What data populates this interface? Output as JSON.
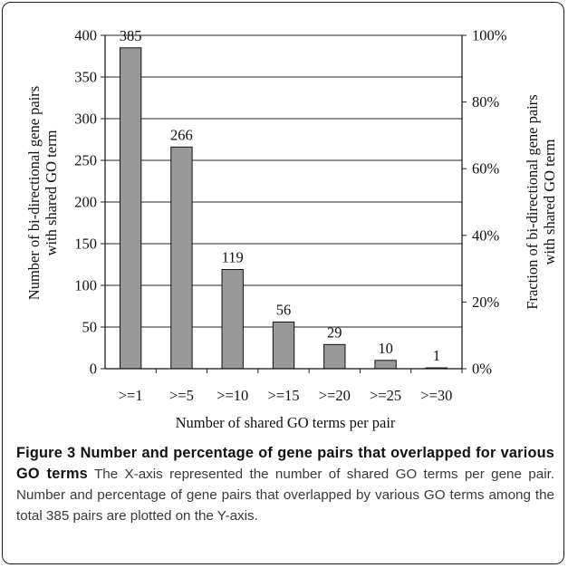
{
  "chart_data": {
    "type": "bar",
    "categories": [
      ">=1",
      ">=5",
      ">=10",
      ">=15",
      ">=20",
      ">=25",
      ">=30"
    ],
    "values": [
      385,
      266,
      119,
      56,
      29,
      10,
      1
    ],
    "data_labels": [
      "385",
      "266",
      "119",
      "56",
      "29",
      "10",
      "1"
    ],
    "xlabel": "Number of shared GO terms per pair",
    "ylabel": [
      "Number of bi-directional gene pairs",
      "with shared GO term"
    ],
    "ylabel_right": [
      "Fraction of bi-directional gene pairs",
      "with shared GO term"
    ],
    "ylim": [
      0,
      400
    ],
    "yticks": [
      0,
      50,
      100,
      150,
      200,
      250,
      300,
      350,
      400
    ],
    "ylim_right": [
      0,
      1.0
    ],
    "yticks_right": [
      "0%",
      "20%",
      "40%",
      "60%",
      "80%",
      "100%"
    ],
    "yticks_right_values": [
      0,
      0.2,
      0.4,
      0.6,
      0.8,
      1.0
    ],
    "grid": true,
    "bar_color": "#999999"
  },
  "caption": {
    "label": "Figure 3 Number and percentage of gene pairs that overlapped for various GO terms",
    "text": "The X-axis represented the number of shared GO terms per gene pair. Number and percentage of gene pairs that overlapped by various GO terms among the total 385 pairs are plotted on the Y-axis."
  }
}
